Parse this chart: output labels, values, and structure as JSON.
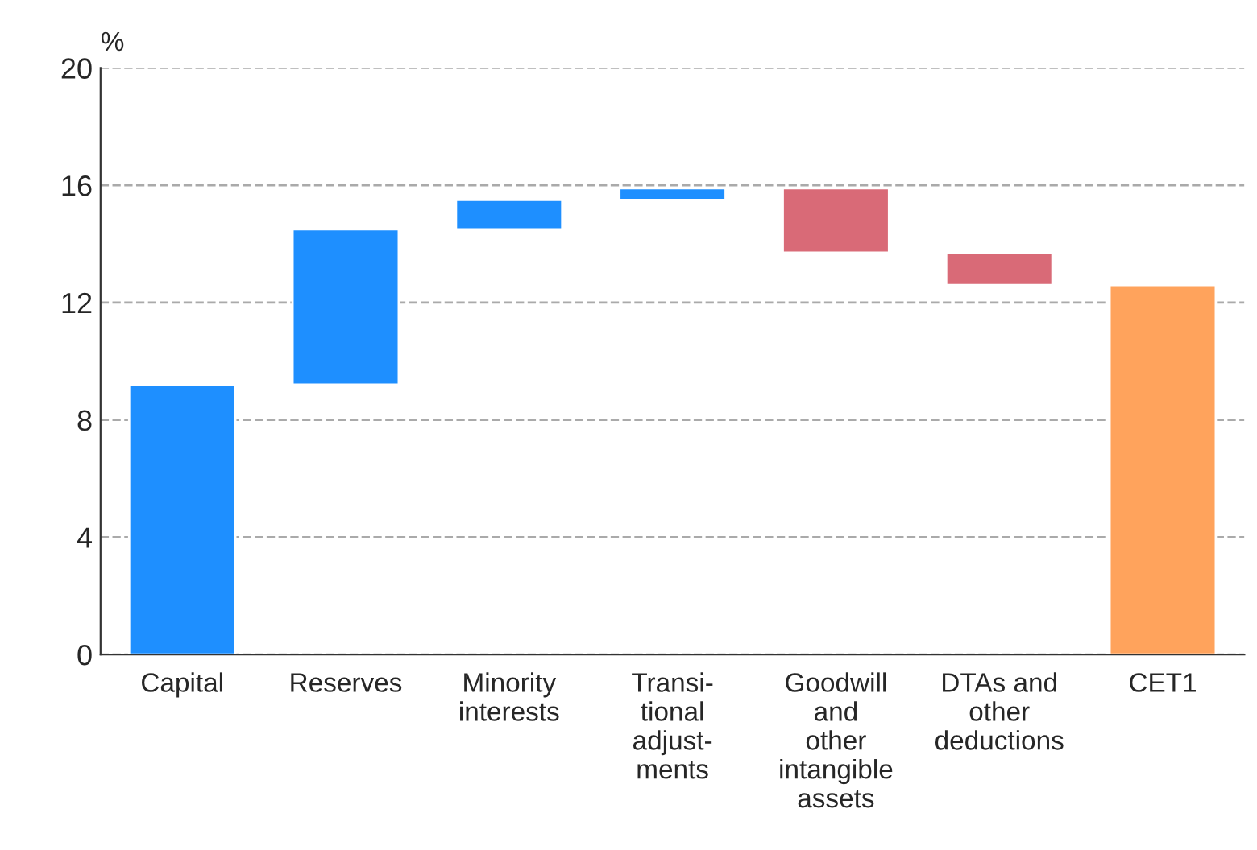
{
  "chart_data": {
    "type": "bar",
    "ylabel": "%",
    "categories": [
      "Capital",
      "Reserves",
      "Minority\ninterests",
      "Transi-\ntional\nadjust-\nments",
      "Goodwill\nand\nother\nintangible\nassets",
      "DTAs and\nother\ndeductions",
      "CET1"
    ],
    "base": [
      0,
      9.2,
      14.5,
      15.5,
      15.9,
      13.7,
      0
    ],
    "values": [
      9.2,
      5.3,
      1.0,
      0.4,
      -2.2,
      -1.1,
      12.6
    ],
    "colors": [
      "#1e8fff",
      "#1e8fff",
      "#1e8fff",
      "#1e8fff",
      "#d96a77",
      "#d96a77",
      "#ffa35c"
    ],
    "ylim": [
      0,
      20
    ],
    "yticks": [
      0,
      4,
      8,
      12,
      16,
      20
    ],
    "grid": "y"
  }
}
